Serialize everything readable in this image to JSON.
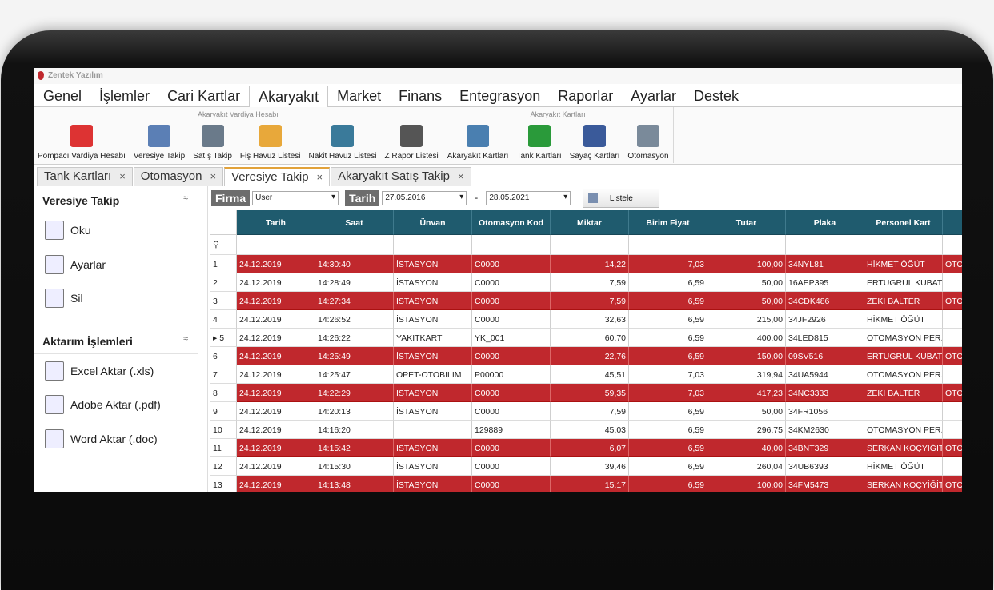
{
  "app": {
    "title": "Zentek Yazılım"
  },
  "menu": [
    "Genel",
    "İşlemler",
    "Cari Kartlar",
    "Akaryakıt",
    "Market",
    "Finans",
    "Entegrasyon",
    "Raporlar",
    "Ayarlar",
    "Destek"
  ],
  "ribbon": {
    "groups": [
      {
        "title": "Akaryakıt Vardiya Hesabı",
        "buttons": [
          "Pompacı Vardiya Hesabı",
          "Veresiye Takip",
          "Satış Takip",
          "Fiş Havuz Listesi",
          "Nakit Havuz Listesi",
          "Z Rapor Listesi"
        ]
      },
      {
        "title": "Akaryakıt Kartları",
        "buttons": [
          "Akaryakıt Kartları",
          "Tank Kartları",
          "Sayaç Kartları",
          "Otomasyon"
        ]
      }
    ]
  },
  "tabs": [
    "Tank Kartları",
    "Otomasyon",
    "Veresiye Takip",
    "Akaryakıt Satış Takip"
  ],
  "sidebar": {
    "sections": [
      {
        "title": "Veresiye Takip",
        "items": [
          "Oku",
          "Ayarlar",
          "Sil"
        ]
      },
      {
        "title": "Aktarım İşlemleri",
        "items": [
          "Excel Aktar (.xls)",
          "Adobe Aktar (.pdf)",
          "Word Aktar (.doc)"
        ]
      }
    ]
  },
  "filter": {
    "firma_label": "Firma",
    "firma_value": "User",
    "tarih_label": "Tarih",
    "start": "27.05.2016",
    "separator": "-",
    "end": "28.05.2021",
    "button": "Listele"
  },
  "table": {
    "columns": [
      "Tarih",
      "Saat",
      "Ünvan",
      "Otomasyon Kod",
      "Miktar",
      "Birim Fiyat",
      "Tutar",
      "Plaka",
      "Personel Kart"
    ],
    "rows": [
      [
        "1",
        "24.12.2019",
        "14:30:40",
        "İSTASYON",
        "C0000",
        "14,22",
        "7,03",
        "100,00",
        "34NYL81",
        "HİKMET ÖĞÜT",
        "OTO"
      ],
      [
        "2",
        "24.12.2019",
        "14:28:49",
        "İSTASYON",
        "C0000",
        "7,59",
        "6,59",
        "50,00",
        "16AEP395",
        "ERTUGRUL KUBAT",
        null
      ],
      [
        "3",
        "24.12.2019",
        "14:27:34",
        "İSTASYON",
        "C0000",
        "7,59",
        "6,59",
        "50,00",
        "34CDK486",
        "ZEKİ BALTER",
        "OTO"
      ],
      [
        "4",
        "24.12.2019",
        "14:26:52",
        "İSTASYON",
        "C0000",
        "32,63",
        "6,59",
        "215,00",
        "34JF2926",
        "HİKMET ÖĞÜT",
        null
      ],
      [
        "5",
        "24.12.2019",
        "14:26:22",
        "YAKITKART",
        "YK_001",
        "60,70",
        "6,59",
        "400,00",
        "34LED815",
        "OTOMASYON PER...",
        null
      ],
      [
        "6",
        "24.12.2019",
        "14:25:49",
        "İSTASYON",
        "C0000",
        "22,76",
        "6,59",
        "150,00",
        "09SV516",
        "ERTUGRUL KUBAT",
        "OTO"
      ],
      [
        "7",
        "24.12.2019",
        "14:25:47",
        "OPET-OTOBILIM",
        "P00000",
        "45,51",
        "7,03",
        "319,94",
        "34UA5944",
        "OTOMASYON PER...",
        null
      ],
      [
        "8",
        "24.12.2019",
        "14:22:29",
        "İSTASYON",
        "C0000",
        "59,35",
        "7,03",
        "417,23",
        "34NC3333",
        "ZEKİ BALTER",
        "OTO"
      ],
      [
        "9",
        "24.12.2019",
        "14:20:13",
        "İSTASYON",
        "C0000",
        "7,59",
        "6,59",
        "50,00",
        "34FR1056",
        null,
        null
      ],
      [
        "10",
        "24.12.2019",
        "14:16:20",
        null,
        "129889",
        "45,03",
        "6,59",
        "296,75",
        "34KM2630",
        "OTOMASYON PER...",
        null
      ],
      [
        "11",
        "24.12.2019",
        "14:15:42",
        "İSTASYON",
        "C0000",
        "6,07",
        "6,59",
        "40,00",
        "34BNT329",
        "SERKAN KOÇYİĞİT",
        "OTO"
      ],
      [
        "12",
        "24.12.2019",
        "14:15:30",
        "İSTASYON",
        "C0000",
        "39,46",
        "6,59",
        "260,04",
        "34UB6393",
        "HİKMET ÖĞÜT",
        null
      ],
      [
        "13",
        "24.12.2019",
        "14:13:48",
        "İSTASYON",
        "C0000",
        "15,17",
        "6,59",
        "100,00",
        "34FM5473",
        "SERKAN KOÇYİĞİT",
        "OTO"
      ]
    ]
  }
}
